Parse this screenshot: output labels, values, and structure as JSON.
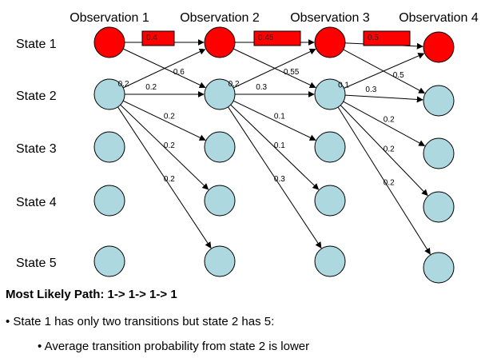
{
  "observations": [
    "Observation 1",
    "Observation 2",
    "Observation 3",
    "Observation 4"
  ],
  "states": [
    "State 1",
    "State 2",
    "State 3",
    "State 4",
    "State 5"
  ],
  "colors": {
    "highlight": "#ff0000",
    "normal": "#add8e0",
    "stroke": "#000000"
  },
  "highlighted_path": [
    1,
    1,
    1,
    1
  ],
  "path_probabilities": [
    "0.4",
    "0.45",
    "0.5"
  ],
  "transition_labels": [
    {
      "from_col": 1,
      "from_state": 1,
      "to_state": 2,
      "label": "0.6"
    },
    {
      "from_col": 1,
      "from_state": 2,
      "to_state": 1,
      "label": "0.2"
    },
    {
      "from_col": 1,
      "from_state": 2,
      "to_state": 2,
      "label": "0.2"
    },
    {
      "from_col": 1,
      "from_state": 2,
      "to_state": 3,
      "label": "0.2"
    },
    {
      "from_col": 1,
      "from_state": 2,
      "to_state": 4,
      "label": "0.2"
    },
    {
      "from_col": 1,
      "from_state": 2,
      "to_state": 5,
      "label": "0.2"
    },
    {
      "from_col": 2,
      "from_state": 1,
      "to_state": 2,
      "label": "0.55"
    },
    {
      "from_col": 2,
      "from_state": 2,
      "to_state": 1,
      "label": "0.2"
    },
    {
      "from_col": 2,
      "from_state": 2,
      "to_state": 2,
      "label": "0.3"
    },
    {
      "from_col": 2,
      "from_state": 2,
      "to_state": 3,
      "label": "0.1"
    },
    {
      "from_col": 2,
      "from_state": 2,
      "to_state": 4,
      "label": "0.1"
    },
    {
      "from_col": 2,
      "from_state": 2,
      "to_state": 5,
      "label": "0.3"
    },
    {
      "from_col": 3,
      "from_state": 1,
      "to_state": 2,
      "label": "0.5"
    },
    {
      "from_col": 3,
      "from_state": 2,
      "to_state": 1,
      "label": "0.1"
    },
    {
      "from_col": 3,
      "from_state": 2,
      "to_state": 2,
      "label": "0.3"
    },
    {
      "from_col": 3,
      "from_state": 2,
      "to_state": 3,
      "label": "0.2"
    },
    {
      "from_col": 3,
      "from_state": 2,
      "to_state": 4,
      "label": "0.2"
    },
    {
      "from_col": 3,
      "from_state": 2,
      "to_state": 5,
      "label": "0.2"
    }
  ],
  "text": {
    "path_line": "Most Likely Path:  1-> 1-> 1-> 1",
    "bullet_1": "• State 1 has only two transitions but state 2 has 5:",
    "bullet_2": "• Average transition probability from state 2 is lower"
  }
}
